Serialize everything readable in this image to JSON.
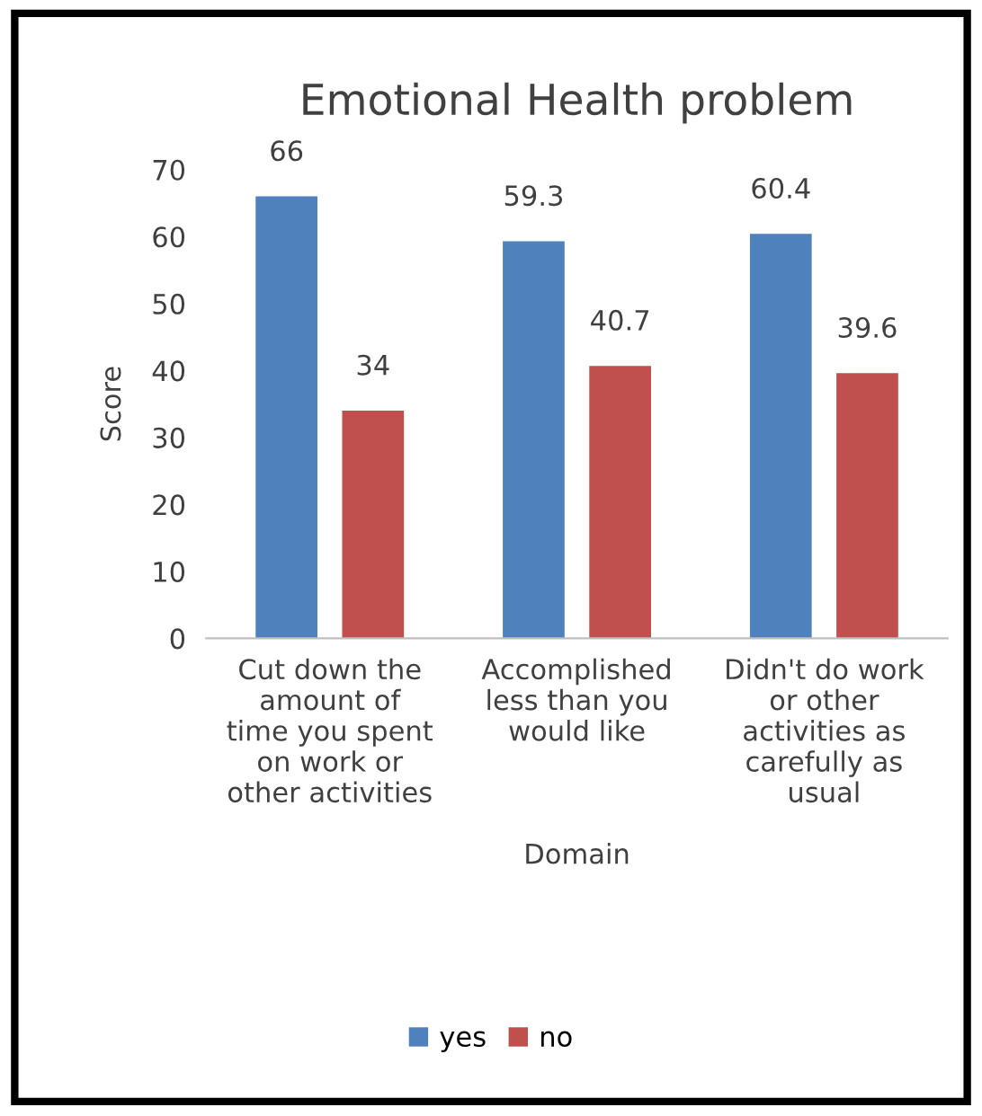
{
  "chart_data": {
    "type": "bar",
    "title": "Emotional Health problem",
    "xlabel": "Domain",
    "ylabel": "Score",
    "categories": [
      "Cut down the\namount of\ntime you spent\non work or\nother activities",
      "Accomplished\nless than you\nwould like",
      "Didn't do work\nor other\nactivities as\ncarefully as\nusual"
    ],
    "series": [
      {
        "name": "yes",
        "color": "#4f81bd",
        "values": [
          66,
          59.3,
          60.4
        ]
      },
      {
        "name": "no",
        "color": "#c0504d",
        "values": [
          34,
          40.7,
          39.6
        ]
      }
    ],
    "ylim": [
      0,
      70
    ],
    "yticks": [
      0,
      10,
      20,
      30,
      40,
      50,
      60,
      70
    ],
    "grid": false,
    "data_labels": true,
    "legend": "bottom"
  }
}
